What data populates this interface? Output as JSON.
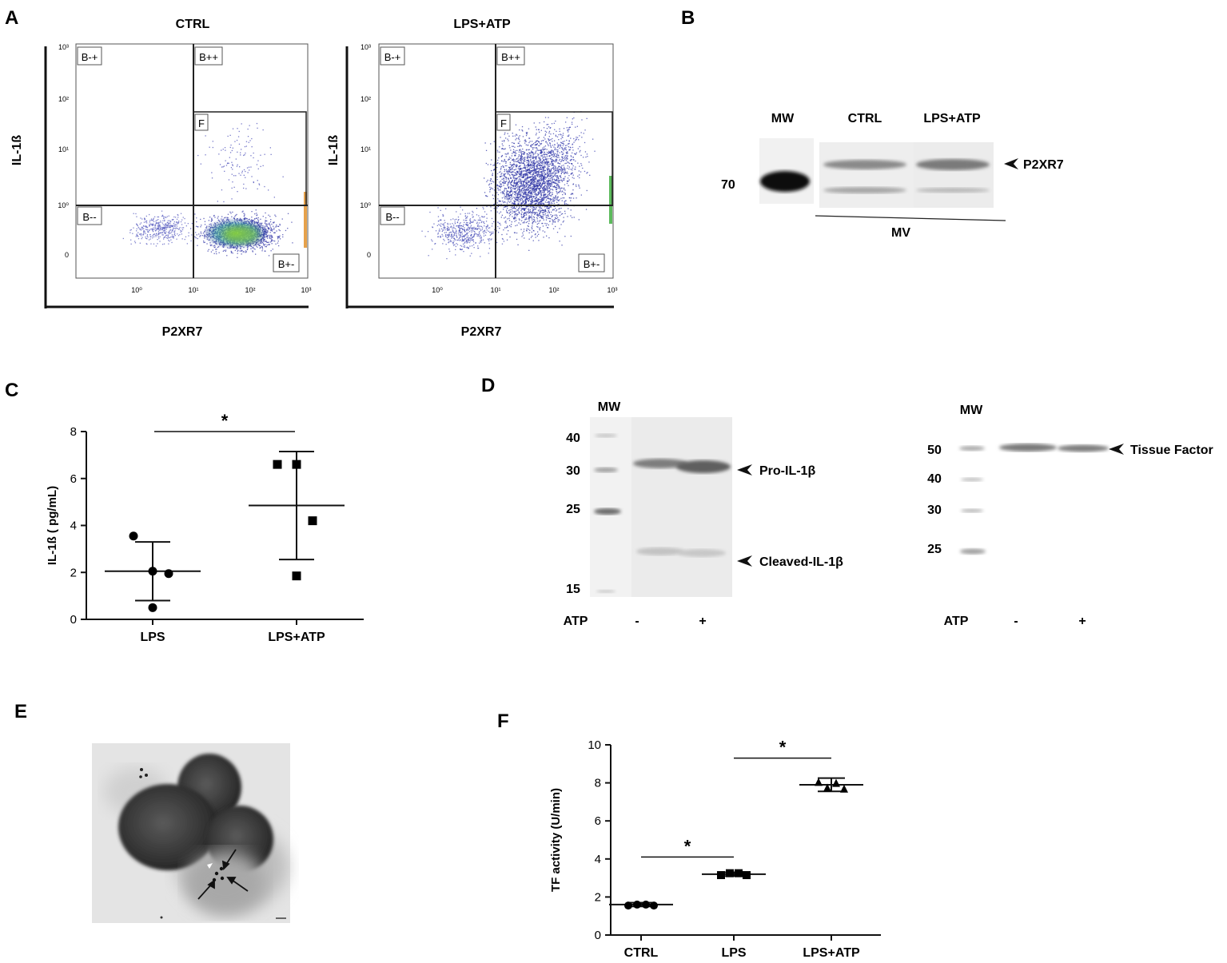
{
  "panels": {
    "A": {
      "letter": "A",
      "plots": [
        {
          "title": "CTRL",
          "ylabel": "IL-1ß",
          "xlabel": "P2XR7",
          "xticks": [
            "10⁰",
            "10¹",
            "10²",
            "10³"
          ],
          "yticks": [
            "10³",
            "10²",
            "10¹",
            "10⁰",
            "0"
          ],
          "gates": {
            "tl": "B-+",
            "tr": "B++",
            "bl": "B--",
            "br": "B+-",
            "box": "F"
          }
        },
        {
          "title": "LPS+ATP",
          "ylabel": "IL-1ß",
          "xlabel": "P2XR7",
          "xticks": [
            "10⁰",
            "10¹",
            "10²",
            "10³"
          ],
          "yticks": [
            "10³",
            "10²",
            "10¹",
            "10⁰",
            "0"
          ],
          "gates": {
            "tl": "B-+",
            "tr": "B++",
            "bl": "B--",
            "br": "B+-",
            "box": "F"
          }
        }
      ]
    },
    "B": {
      "letter": "B",
      "lanes": [
        "MW",
        "CTRL",
        "LPS+ATP"
      ],
      "mw_label": "70",
      "band_label": "P2XR7",
      "group_label": "MV"
    },
    "C": {
      "letter": "C"
    },
    "D": {
      "letter": "D",
      "left": {
        "mw": "MW",
        "ladder": [
          "40",
          "30",
          "25",
          "15"
        ],
        "bands": [
          "Pro-IL-1β",
          "Cleaved-IL-1β"
        ],
        "treat_label": "ATP",
        "treat": [
          "-",
          "+"
        ]
      },
      "right": {
        "mw": "MW",
        "ladder": [
          "50",
          "40",
          "30",
          "25"
        ],
        "bands": [
          "Tissue Factor"
        ],
        "treat_label": "ATP",
        "treat": [
          "-",
          "+"
        ]
      }
    },
    "E": {
      "letter": "E"
    },
    "F": {
      "letter": "F"
    }
  },
  "chart_data": [
    {
      "type": "scatter",
      "panel": "C",
      "ylabel": "IL-1ß ( pg/mL)",
      "categories": [
        "LPS",
        "LPS+ATP"
      ],
      "ylim": [
        0,
        8
      ],
      "yticks": [
        0,
        2,
        4,
        6,
        8
      ],
      "series": [
        {
          "category": "LPS",
          "marker": "circle",
          "points": [
            3.55,
            2.05,
            1.95,
            0.5
          ],
          "mean": 2.05,
          "err_low": 0.8,
          "err_high": 3.3
        },
        {
          "category": "LPS+ATP",
          "marker": "square",
          "points": [
            6.6,
            6.6,
            4.2,
            1.85
          ],
          "mean": 4.85,
          "err_low": 2.55,
          "err_high": 7.15
        }
      ],
      "significance": [
        {
          "from": "LPS",
          "to": "LPS+ATP",
          "label": "*",
          "y": 8.0
        }
      ]
    },
    {
      "type": "scatter",
      "panel": "F",
      "ylabel": "TF activity (U/min)",
      "categories": [
        "CTRL",
        "LPS",
        "LPS+ATP"
      ],
      "ylim": [
        0,
        10
      ],
      "yticks": [
        0,
        2,
        4,
        6,
        8,
        10
      ],
      "series": [
        {
          "category": "CTRL",
          "marker": "circle",
          "points": [
            1.55,
            1.6,
            1.6,
            1.55
          ],
          "mean": 1.6,
          "err_low": 1.5,
          "err_high": 1.7
        },
        {
          "category": "LPS",
          "marker": "square",
          "points": [
            3.15,
            3.25,
            3.25,
            3.15
          ],
          "mean": 3.2,
          "err_low": 3.1,
          "err_high": 3.3
        },
        {
          "category": "LPS+ATP",
          "marker": "triangle",
          "points": [
            8.05,
            7.75,
            8.0,
            7.7
          ],
          "mean": 7.9,
          "err_low": 7.55,
          "err_high": 8.25
        }
      ],
      "significance": [
        {
          "from": "CTRL",
          "to": "LPS",
          "label": "*",
          "y": 4.1
        },
        {
          "from": "LPS",
          "to": "LPS+ATP",
          "label": "*",
          "y": 9.3
        }
      ]
    }
  ]
}
